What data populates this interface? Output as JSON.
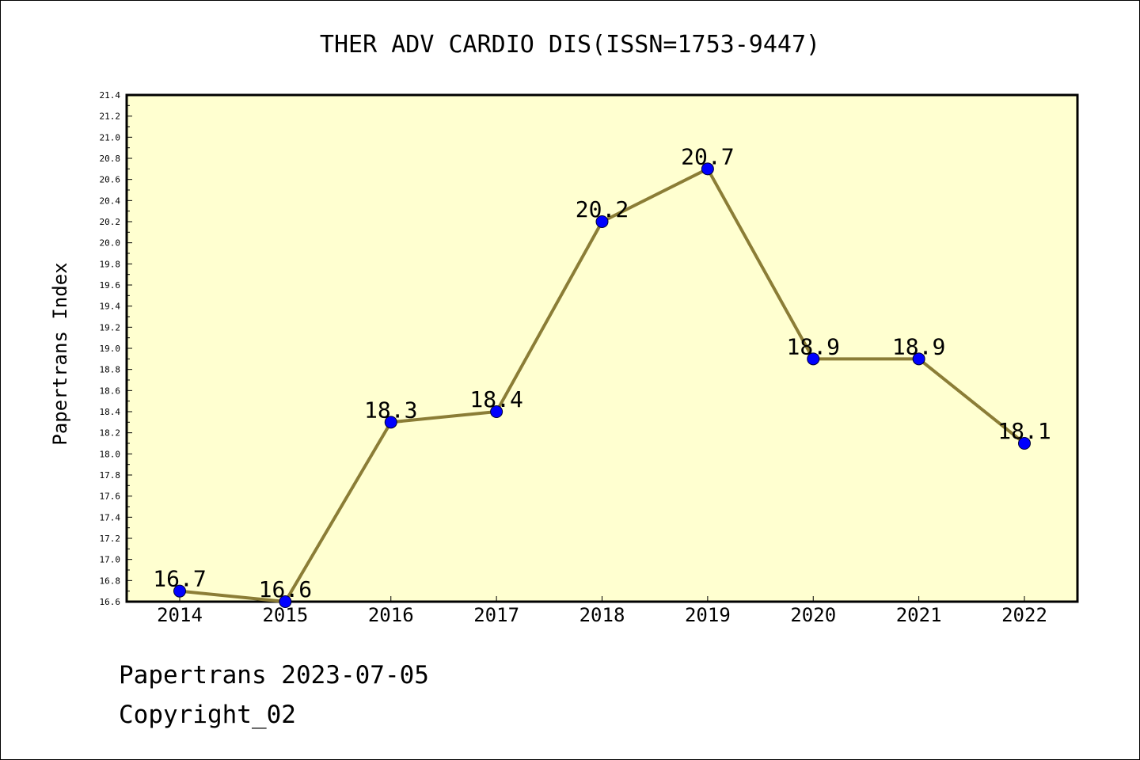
{
  "chart_data": {
    "type": "line",
    "title": "THER ADV CARDIO DIS(ISSN=1753-9447)",
    "xlabel": "",
    "ylabel": "Papertrans Index",
    "x": [
      "2014",
      "2015",
      "2016",
      "2017",
      "2018",
      "2019",
      "2020",
      "2021",
      "2022"
    ],
    "series": [
      {
        "values": [
          16.7,
          16.6,
          18.3,
          18.4,
          20.2,
          20.7,
          18.9,
          18.9,
          18.1
        ]
      }
    ],
    "data_labels": [
      "16.7",
      "16.6",
      "18.3",
      "18.4",
      "20.2",
      "20.7",
      "18.9",
      "18.9",
      "18.1"
    ],
    "ylim": [
      16.6,
      21.4
    ],
    "yticks": [
      "16.6",
      "16.8",
      "17.0",
      "17.2",
      "17.4",
      "17.6",
      "17.8",
      "18.0",
      "18.2",
      "18.4",
      "18.6",
      "18.8",
      "19.0",
      "19.2",
      "19.4",
      "19.6",
      "19.8",
      "20.0",
      "20.2",
      "20.4",
      "20.6",
      "20.8",
      "21.0",
      "21.2",
      "21.4"
    ],
    "grid": false,
    "colors": {
      "plot_bg": "#ffffd0",
      "line": "#8b7d36",
      "marker": "#0000ff"
    }
  },
  "footer": {
    "line1": "Papertrans 2023-07-05",
    "line2": "Copyright_02"
  }
}
